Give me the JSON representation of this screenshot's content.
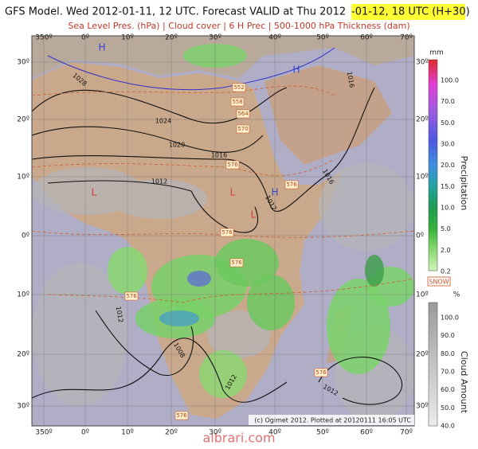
{
  "header": {
    "title_prefix": "GFS Model. Wed 2012-01-11, 12 UTC. Forecast VALID at Thu 2012",
    "title_highlight": "-01-12, 18 UTC (H+30)",
    "subtitle": "Sea Level Pres. (hPa) | Cloud cover | 6 H Prec | 500-1000 hPa Thickness (dam)"
  },
  "map": {
    "lon_labels_top": [
      "350º",
      "0º",
      "10º",
      "20º",
      "30º",
      "40º",
      "50º",
      "60º",
      "70º"
    ],
    "lon_labels_bottom": [
      "350º",
      "0º",
      "10º",
      "20º",
      "30º",
      "40º",
      "50º",
      "60º",
      "70º"
    ],
    "lat_labels_left": [
      "30º",
      "20º",
      "10º",
      "0º",
      "10º",
      "20º",
      "30º"
    ],
    "lat_labels_right": [
      "30º",
      "20º",
      "10º",
      "0º",
      "10º",
      "20º",
      "30º"
    ],
    "isobar_labels": [
      "1028",
      "1024",
      "1020",
      "1016",
      "1012",
      "1016",
      "1016",
      "1012",
      "1012",
      "1008",
      "1012",
      "1012"
    ],
    "thickness_labels": [
      "552",
      "558",
      "564",
      "570",
      "576",
      "576",
      "576",
      "576",
      "576",
      "576",
      "576"
    ],
    "pressure_centers": [
      "H",
      "H",
      "H",
      "L",
      "L",
      "L"
    ],
    "credit": "(c) Ogimet 2012. Plotted at 20120111 16:05 UTC"
  },
  "precip_legend": {
    "unit": "mm",
    "title": "Precipitation",
    "ticks": [
      "100.0",
      "70.0",
      "50.0",
      "30.0",
      "20.0",
      "15.0",
      "10.0",
      "5.0",
      "2.0",
      "0.2"
    ]
  },
  "cloud_legend": {
    "snow": "SNOW",
    "unit": "%",
    "title": "Cloud Amount",
    "ticks": [
      "100.0",
      "90.0",
      "80.0",
      "70.0",
      "60.0",
      "50.0",
      "40.0"
    ]
  },
  "watermark": "albrari.com"
}
